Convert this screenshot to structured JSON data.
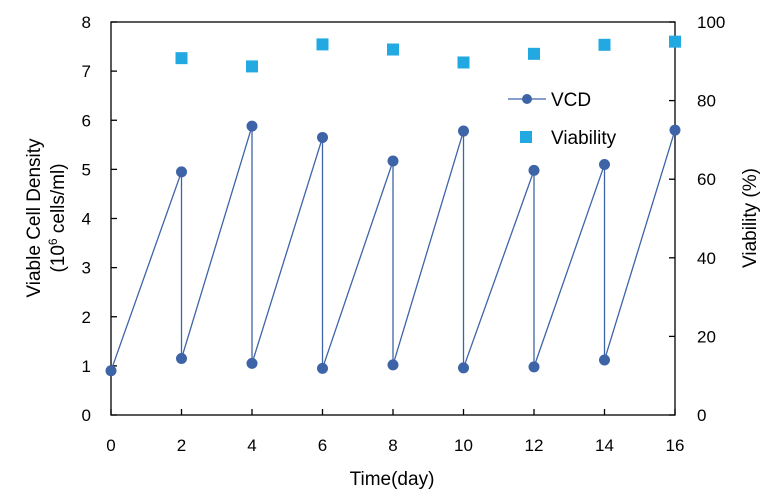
{
  "chart_data": {
    "type": "line",
    "xlabel": "Time(day)",
    "ylabel_left_line1": "Viable Cell Density",
    "ylabel_left_line2_prefix": "(10",
    "ylabel_left_line2_sup": "6",
    "ylabel_left_line2_suffix": " cells/ml)",
    "ylabel_right": "Viability (%)",
    "xlim": [
      0,
      16
    ],
    "ylim_left": [
      0,
      8
    ],
    "ylim_right": [
      0,
      100
    ],
    "x_ticks": [
      "0",
      "2",
      "4",
      "6",
      "8",
      "10",
      "12",
      "14",
      "16"
    ],
    "y_left_ticks": [
      "0",
      "1",
      "2",
      "3",
      "4",
      "5",
      "6",
      "7",
      "8"
    ],
    "y_right_ticks": [
      "0",
      "20",
      "40",
      "60",
      "80",
      "100"
    ],
    "grid": false,
    "legend_position": "upper-right-inside",
    "series": [
      {
        "name": "VCD",
        "axis": "left",
        "style": "line-marker",
        "color": "#3E64A8",
        "x": [
          0,
          2,
          2,
          4,
          4,
          6,
          6,
          8,
          8,
          10,
          10,
          12,
          12,
          14,
          14,
          16
        ],
        "y": [
          0.9,
          4.95,
          1.15,
          5.88,
          1.05,
          5.65,
          0.95,
          5.17,
          1.02,
          5.78,
          0.96,
          4.98,
          0.98,
          5.1,
          1.12,
          5.8
        ]
      },
      {
        "name": "Viability",
        "axis": "right",
        "style": "square-marker",
        "color": "#23A9E1",
        "x": [
          2,
          4,
          6,
          8,
          10,
          12,
          14,
          16
        ],
        "y": [
          90.8,
          88.7,
          94.3,
          93.0,
          89.7,
          91.9,
          94.2,
          95.0
        ]
      }
    ]
  }
}
